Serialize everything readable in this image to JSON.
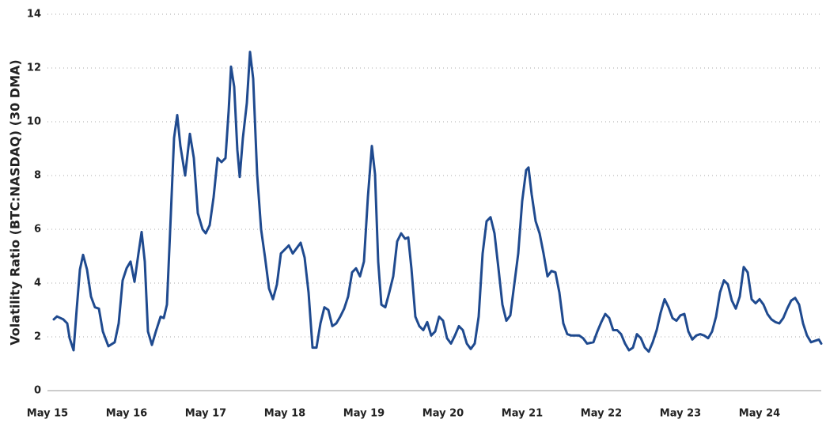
{
  "chart_data": {
    "type": "line",
    "y_label": "Volatility Ratio (BTC:NASDAQ) (30 DMA)",
    "color": "#1f4a8f",
    "xlim": [
      0,
      9.78
    ],
    "xticks": [
      {
        "value": 0,
        "label": "May 15"
      },
      {
        "value": 1,
        "label": "May 16"
      },
      {
        "value": 2,
        "label": "May 17"
      },
      {
        "value": 3,
        "label": "May 18"
      },
      {
        "value": 4,
        "label": "May 19"
      },
      {
        "value": 5,
        "label": "May 20"
      },
      {
        "value": 6,
        "label": "May 21"
      },
      {
        "value": 7,
        "label": "May 22"
      },
      {
        "value": 8,
        "label": "May 23"
      },
      {
        "value": 9,
        "label": "May 24"
      }
    ],
    "ylim": [
      0,
      14
    ],
    "yticks": [
      0,
      2,
      4,
      6,
      8,
      10,
      12,
      14
    ],
    "grid": true,
    "x": [
      0.08,
      0.12,
      0.2,
      0.25,
      0.28,
      0.33,
      0.37,
      0.41,
      0.45,
      0.5,
      0.55,
      0.6,
      0.65,
      0.7,
      0.77,
      0.85,
      0.9,
      0.95,
      1.0,
      1.05,
      1.1,
      1.15,
      1.19,
      1.23,
      1.27,
      1.32,
      1.37,
      1.43,
      1.47,
      1.51,
      1.56,
      1.6,
      1.64,
      1.68,
      1.74,
      1.8,
      1.85,
      1.9,
      1.96,
      2.0,
      2.05,
      2.1,
      2.15,
      2.2,
      2.25,
      2.29,
      2.32,
      2.36,
      2.4,
      2.43,
      2.47,
      2.52,
      2.56,
      2.6,
      2.65,
      2.7,
      2.75,
      2.8,
      2.85,
      2.9,
      2.95,
      3.0,
      3.05,
      3.1,
      3.15,
      3.2,
      3.25,
      3.3,
      3.35,
      3.4,
      3.45,
      3.5,
      3.55,
      3.6,
      3.65,
      3.7,
      3.75,
      3.8,
      3.85,
      3.9,
      3.95,
      4.0,
      4.05,
      4.1,
      4.14,
      4.18,
      4.22,
      4.27,
      4.32,
      4.37,
      4.42,
      4.47,
      4.52,
      4.56,
      4.6,
      4.65,
      4.7,
      4.75,
      4.8,
      4.85,
      4.9,
      4.95,
      5.0,
      5.05,
      5.1,
      5.15,
      5.2,
      5.25,
      5.3,
      5.35,
      5.4,
      5.45,
      5.5,
      5.55,
      5.6,
      5.65,
      5.7,
      5.75,
      5.8,
      5.85,
      5.9,
      5.95,
      6.0,
      6.05,
      6.08,
      6.12,
      6.17,
      6.22,
      6.27,
      6.32,
      6.37,
      6.42,
      6.47,
      6.52,
      6.57,
      6.62,
      6.67,
      6.72,
      6.77,
      6.82,
      6.9,
      6.95,
      7.0,
      7.05,
      7.1,
      7.15,
      7.2,
      7.25,
      7.3,
      7.35,
      7.4,
      7.45,
      7.5,
      7.55,
      7.6,
      7.65,
      7.7,
      7.75,
      7.8,
      7.85,
      7.9,
      7.95,
      8.0,
      8.05,
      8.1,
      8.15,
      8.2,
      8.25,
      8.3,
      8.35,
      8.4,
      8.45,
      8.5,
      8.55,
      8.6,
      8.65,
      8.7,
      8.75,
      8.8,
      8.85,
      8.9,
      8.95,
      9.0,
      9.05,
      9.1,
      9.15,
      9.2,
      9.25,
      9.3,
      9.35,
      9.4,
      9.45,
      9.5,
      9.55,
      9.6,
      9.65,
      9.7,
      9.75,
      9.78
    ],
    "values": [
      2.65,
      2.76,
      2.65,
      2.5,
      1.95,
      1.5,
      3.05,
      4.5,
      5.05,
      4.5,
      3.5,
      3.1,
      3.05,
      2.2,
      1.65,
      1.8,
      2.5,
      4.1,
      4.55,
      4.8,
      4.05,
      5.1,
      5.9,
      4.8,
      2.2,
      1.7,
      2.2,
      2.75,
      2.7,
      3.2,
      6.6,
      9.4,
      10.25,
      9.1,
      8,
      9.55,
      8.65,
      6.6,
      6,
      5.85,
      6.15,
      7.2,
      8.65,
      8.5,
      8.65,
      10.4,
      12.05,
      11.3,
      8.95,
      7.95,
      9.4,
      10.7,
      12.6,
      11.6,
      8.05,
      6,
      4.95,
      3.8,
      3.4,
      3.95,
      5.1,
      5.25,
      5.4,
      5.1,
      5.3,
      5.5,
      4.95,
      3.65,
      1.6,
      1.6,
      2.5,
      3.1,
      3,
      2.4,
      2.5,
      2.75,
      3.05,
      3.5,
      4.4,
      4.55,
      4.25,
      4.8,
      7.2,
      9.1,
      8.05,
      4.8,
      3.2,
      3.1,
      3.65,
      4.25,
      5.55,
      5.85,
      5.65,
      5.7,
      4.55,
      2.75,
      2.4,
      2.25,
      2.55,
      2.05,
      2.2,
      2.75,
      2.6,
      1.95,
      1.75,
      2.05,
      2.4,
      2.25,
      1.75,
      1.55,
      1.75,
      2.75,
      5.1,
      6.3,
      6.45,
      5.85,
      4.55,
      3.2,
      2.6,
      2.8,
      3.95,
      5.1,
      7.05,
      8.2,
      8.3,
      7.3,
      6.3,
      5.85,
      5.1,
      4.25,
      4.45,
      4.4,
      3.65,
      2.5,
      2.1,
      2.05,
      2.05,
      2.05,
      1.95,
      1.75,
      1.8,
      2.2,
      2.55,
      2.85,
      2.7,
      2.25,
      2.25,
      2.1,
      1.75,
      1.5,
      1.6,
      2.1,
      1.95,
      1.6,
      1.45,
      1.8,
      2.25,
      2.9,
      3.4,
      3.1,
      2.7,
      2.6,
      2.8,
      2.85,
      2.2,
      1.9,
      2.05,
      2.1,
      2.05,
      1.95,
      2.2,
      2.75,
      3.65,
      4.1,
      3.95,
      3.35,
      3.05,
      3.5,
      4.6,
      4.4,
      3.4,
      3.25,
      3.4,
      3.2,
      2.85,
      2.65,
      2.55,
      2.5,
      2.7,
      3.05,
      3.35,
      3.45,
      3.2,
      2.5,
      2.05,
      1.8,
      1.85,
      1.9,
      1.75
    ]
  }
}
